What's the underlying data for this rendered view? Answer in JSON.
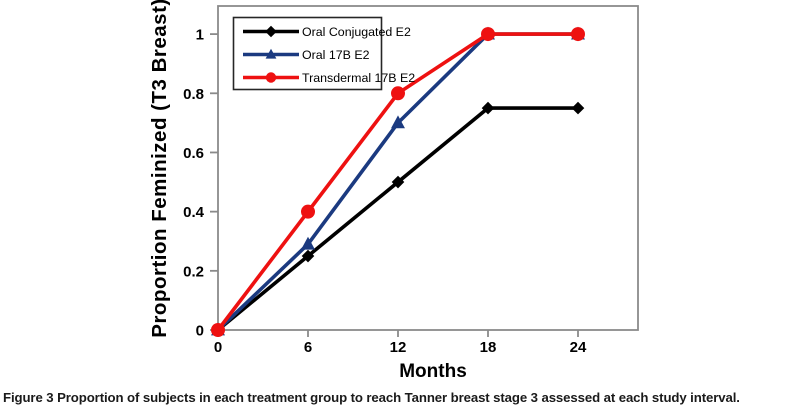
{
  "figure": {
    "caption": {
      "label": "Figure 3",
      "text": "Proportion of subjects in each treatment group to reach Tanner breast stage 3 assessed at each study interval."
    }
  },
  "chart_data": {
    "type": "line",
    "title": "",
    "xlabel": "Months",
    "ylabel": "Proportion Feminized (T3 Breast)",
    "x": [
      0,
      6,
      12,
      18,
      24
    ],
    "x_tick_labels": [
      "0",
      "6",
      "12",
      "18",
      "24"
    ],
    "y_ticks": [
      0,
      0.2,
      0.4,
      0.6,
      0.8,
      1
    ],
    "y_tick_labels": [
      "0",
      "0.2",
      "0.4",
      "0.6",
      "0.8",
      "1"
    ],
    "xlim": [
      0,
      28
    ],
    "ylim": [
      0,
      1.095
    ],
    "grid": false,
    "axis_color": "#8a8a8a",
    "tick_label_color": "#000000",
    "legend": {
      "position": "top-left-inside",
      "border_color": "#262626",
      "background": "#ffffff"
    },
    "series": [
      {
        "name": "Oral Conjugated E2",
        "color": "#000000",
        "marker": "diamond",
        "values": [
          0,
          0.25,
          0.5,
          0.75,
          0.75
        ]
      },
      {
        "name": "Oral 17B E2",
        "color": "#1B3A80",
        "marker": "triangle",
        "values": [
          0,
          0.29,
          0.7,
          1,
          1
        ]
      },
      {
        "name": "Transdermal 17B E2",
        "color": "#EE1111",
        "marker": "circle",
        "values": [
          0,
          0.4,
          0.8,
          1,
          1
        ]
      }
    ]
  }
}
